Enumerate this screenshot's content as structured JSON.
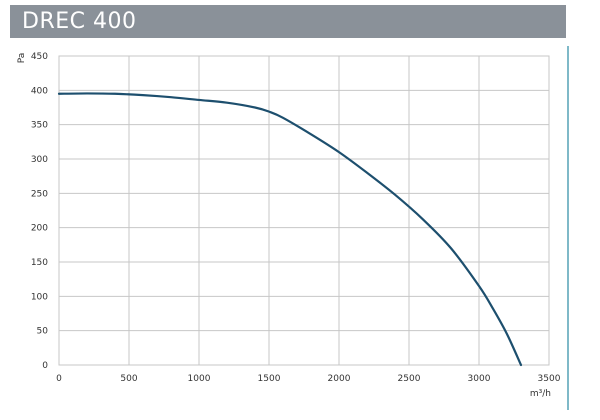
{
  "header": {
    "title": "DREC 400"
  },
  "colors": {
    "title_bar": "#8a9199",
    "curve": "#1d4f6e",
    "grid": "#c7c7c7",
    "accent_rule": "#7fb9c8"
  },
  "chart_data": {
    "type": "line",
    "title": "DREC 400",
    "xlabel": "m³/h",
    "ylabel": "Pa",
    "xlim": [
      0,
      3500
    ],
    "ylim": [
      0,
      450
    ],
    "x_ticks": [
      "0",
      "500",
      "1000",
      "1500",
      "2000",
      "2500",
      "3000",
      "3500"
    ],
    "y_ticks": [
      "0",
      "50",
      "100",
      "150",
      "200",
      "250",
      "300",
      "350",
      "400",
      "450"
    ],
    "grid": true,
    "series": [
      {
        "x": [
          0,
          200,
          400,
          600,
          800,
          1000,
          1200,
          1400,
          1500,
          1600,
          1800,
          2000,
          2200,
          2400,
          2600,
          2800,
          3000,
          3100,
          3200,
          3300
        ],
        "values": [
          395,
          395.5,
          395,
          393,
          390,
          386,
          382,
          375,
          369,
          360,
          336,
          310,
          280,
          248,
          212,
          170,
          115,
          82,
          45,
          0
        ]
      }
    ]
  }
}
